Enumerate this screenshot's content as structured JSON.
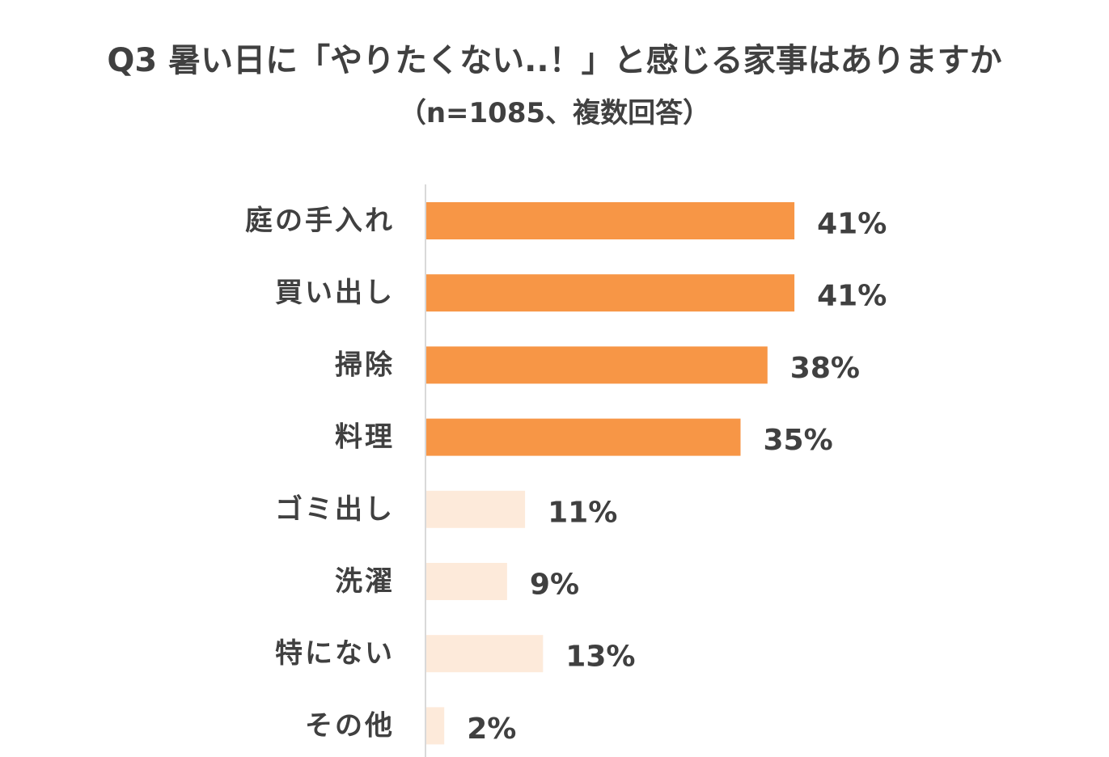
{
  "chart_data": {
    "type": "bar",
    "orientation": "horizontal",
    "title": "Q3 暑い日に「やりたくない..！」と感じる家事はありますか",
    "subtitle": "（n=1085、複数回答）",
    "categories": [
      "庭の手入れ",
      "買い出し",
      "掃除",
      "料理",
      "ゴミ出し",
      "洗濯",
      "特にない",
      "その他"
    ],
    "values": [
      41,
      41,
      38,
      35,
      11,
      9,
      13,
      2
    ],
    "value_labels": [
      "41%",
      "41%",
      "38%",
      "35%",
      "11%",
      "9%",
      "13%",
      "2%"
    ],
    "highlighted": [
      true,
      true,
      true,
      true,
      false,
      false,
      false,
      false
    ],
    "xlabel": "",
    "ylabel": "",
    "unit": "%",
    "grid": false,
    "legend": "none"
  },
  "colors": {
    "highlight": "#F79646",
    "normal": "#FDEADA",
    "axis": "#D9D9D9",
    "text": "#404040"
  }
}
